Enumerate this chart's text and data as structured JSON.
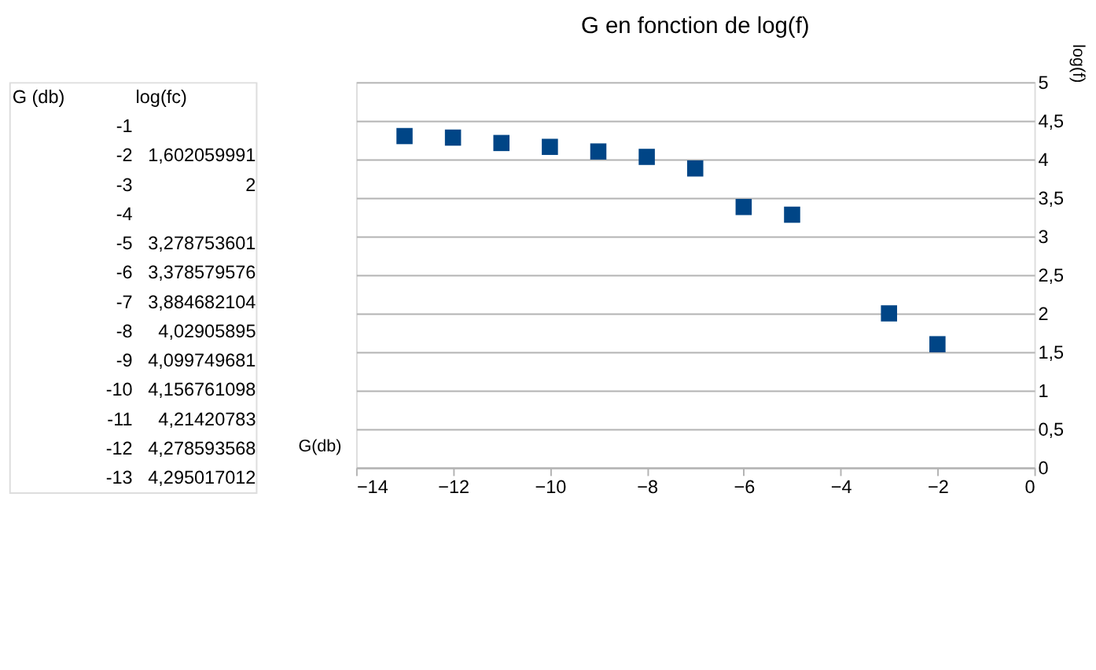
{
  "chart_data": {
    "type": "scatter",
    "title": "G en fonction de log(f)",
    "xlabel": "G(db)",
    "ylabel": "log(f)",
    "x": [
      -2,
      -3,
      -5,
      -6,
      -7,
      -8,
      -9,
      -10,
      -11,
      -12,
      -13
    ],
    "series": [
      {
        "color": "#004586",
        "values": [
          1.6,
          2.0,
          3.28,
          3.38,
          3.88,
          4.03,
          4.1,
          4.16,
          4.21,
          4.28,
          4.3
        ]
      }
    ],
    "annotations": [
      "G (db)\tlog(fc)",
      "-1",
      "-2\t1,602059991",
      "-3\t2",
      "-4",
      "-5\t3,278753601",
      "-6\t3,378579576",
      "-7\t3,884682104",
      "-8\t4,02905895",
      "-9\t4,099749681",
      "-10\t4,156761098",
      "-11\t4,21420783",
      "-12\t4,278593568",
      "-13\t4,295017012"
    ],
    "marker": "square",
    "grid": "y",
    "xlim": [
      -14,
      0
    ],
    "xticks": [
      -14,
      -12,
      -10,
      -8,
      -6,
      -4,
      -2,
      0
    ],
    "ylim": [
      0,
      5
    ],
    "yticks": [
      {
        "value": 0,
        "label": "0"
      },
      {
        "value": 0.5,
        "label": "0,5"
      },
      {
        "value": 1,
        "label": "1"
      },
      {
        "value": 1.5,
        "label": "1,5"
      },
      {
        "value": 2,
        "label": "2"
      },
      {
        "value": 2.5,
        "label": "2,5"
      },
      {
        "value": 3,
        "label": "3"
      },
      {
        "value": 3.5,
        "label": "3,5"
      },
      {
        "value": 4,
        "label": "4"
      },
      {
        "value": 4.5,
        "label": "4,5"
      },
      {
        "value": 5,
        "label": "5"
      }
    ]
  }
}
